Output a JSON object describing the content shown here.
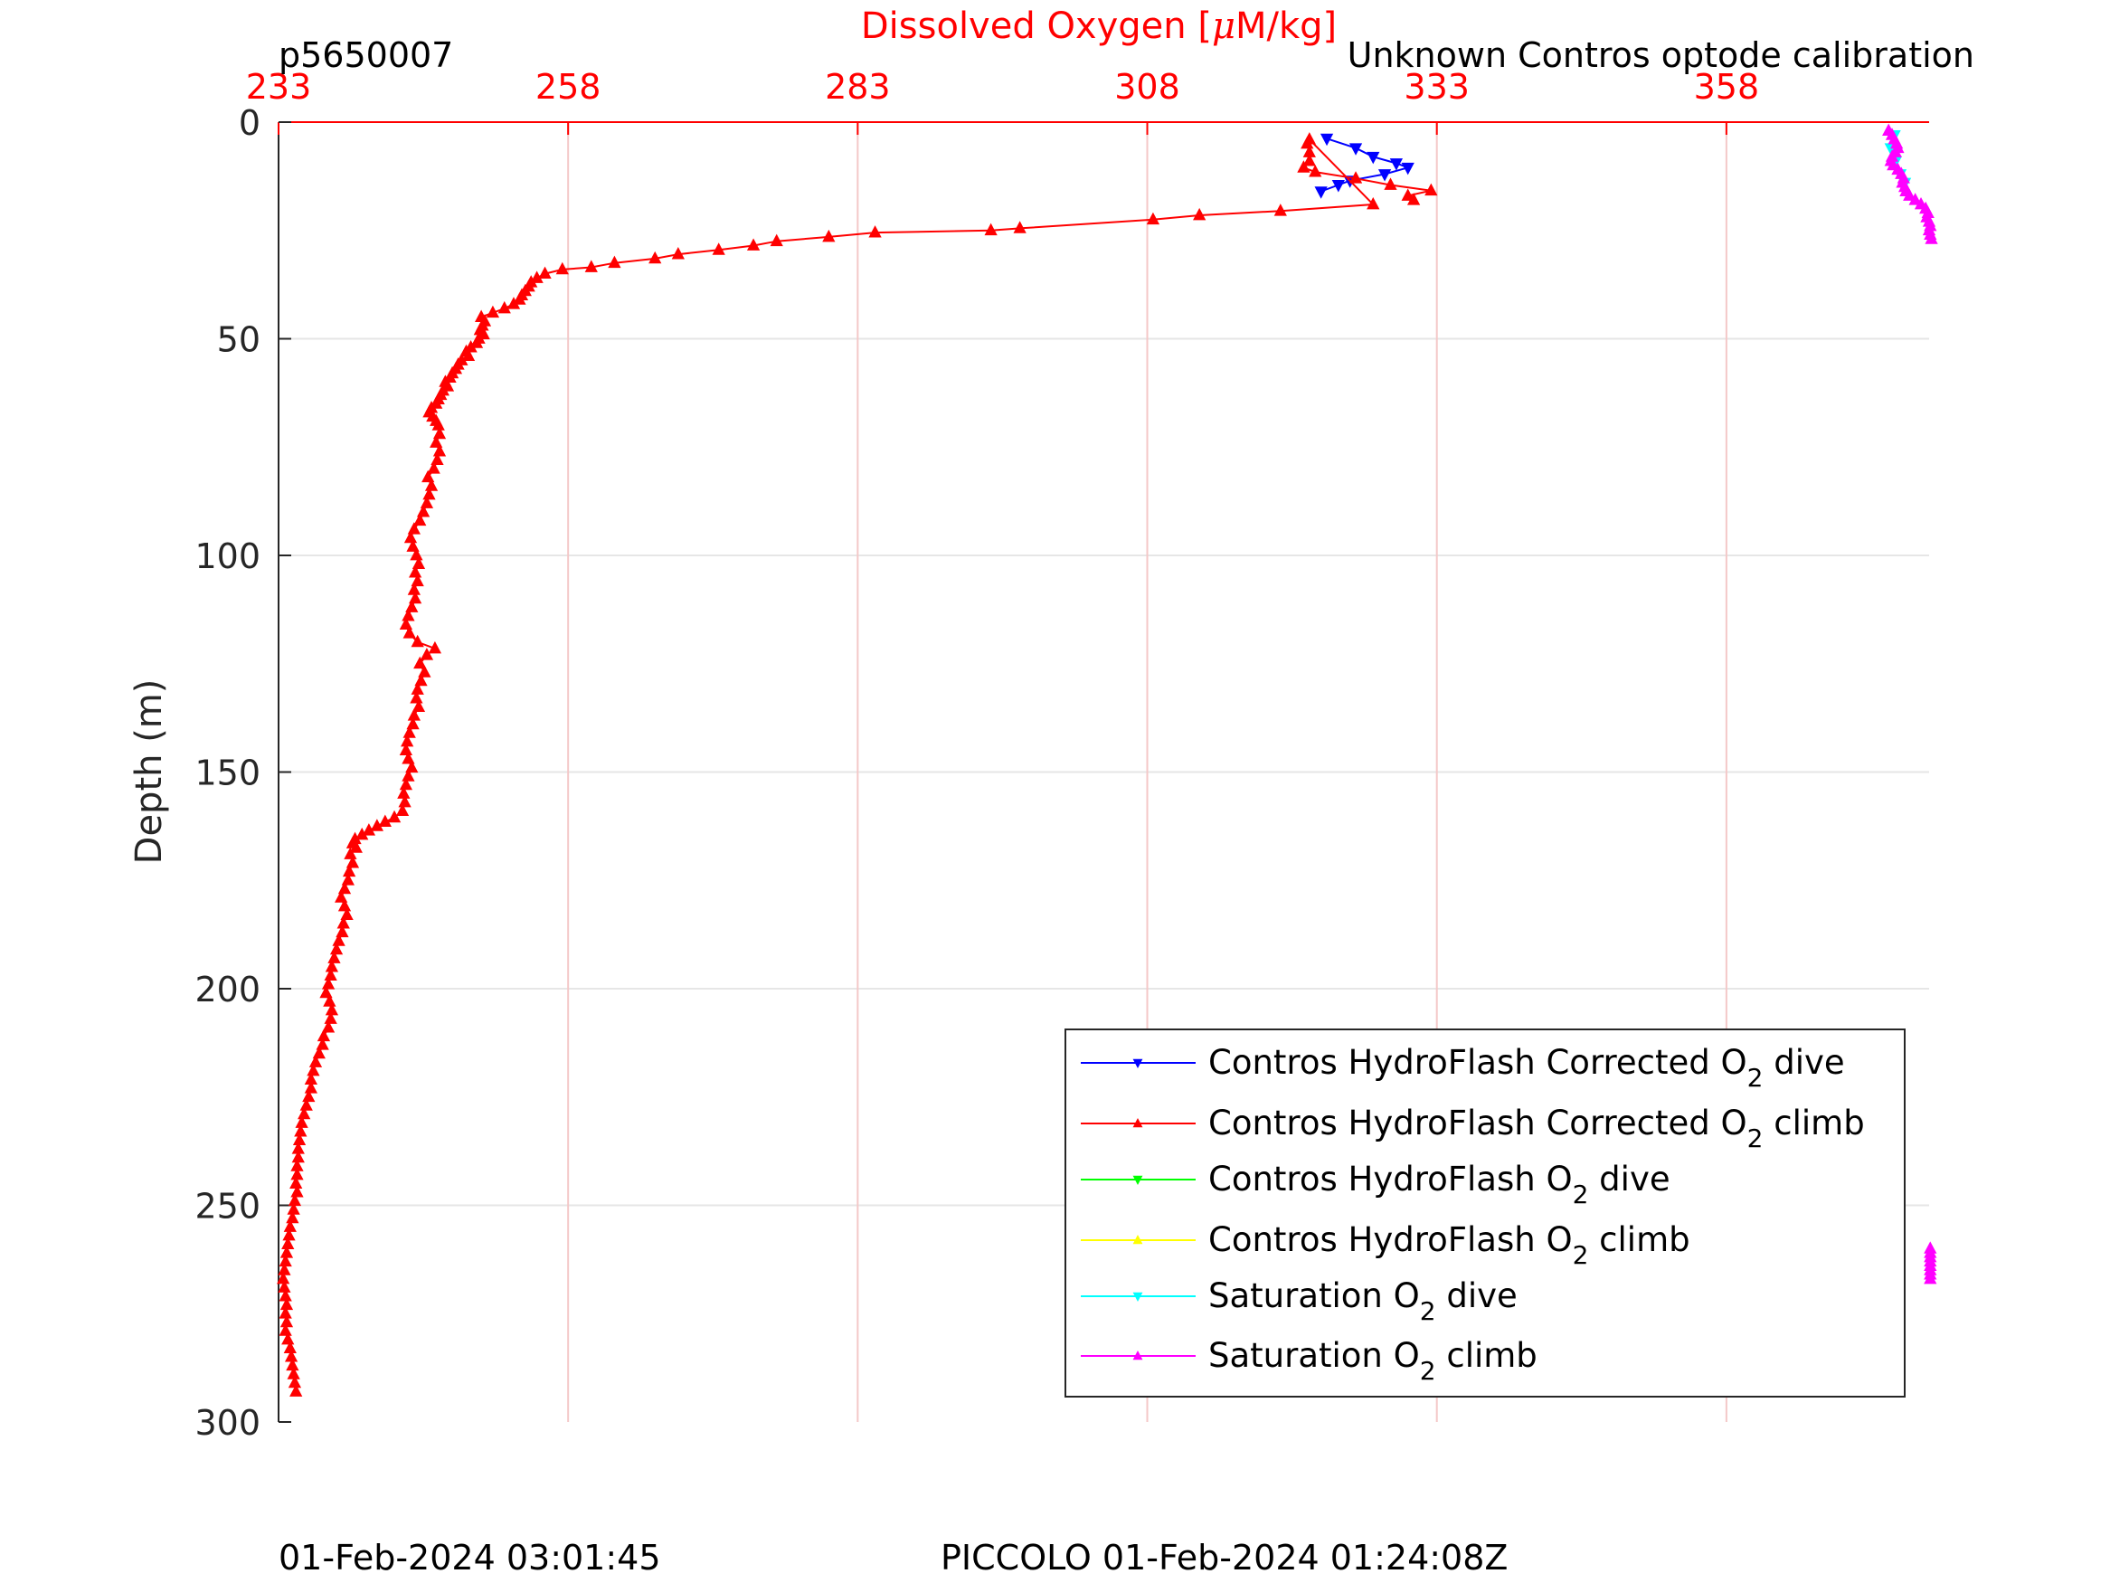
{
  "header": {
    "profile_id": "p5650007",
    "title_prefix": "Dissolved Oxygen [",
    "title_mu": "μ",
    "title_suffix": "M/kg]",
    "calibration_note": "Unknown Contros optode calibration"
  },
  "footer": {
    "left_timestamp": "01-Feb-2024 03:01:45",
    "center_timestamp": "PICCOLO 01-Feb-2024 01:24:08Z"
  },
  "colors": {
    "axis_red": "#ff0000",
    "grid_major": "#e6e6e6",
    "grid_red": "#f4c8c8",
    "axis_black": "#262626"
  },
  "chart_data": {
    "type": "line",
    "xlabel": "Dissolved Oxygen [μM/kg]",
    "ylabel": "Depth (m)",
    "xlim": [
      233,
      375.5
    ],
    "ylim": [
      0,
      300
    ],
    "y_reversed": true,
    "x_axis_position": "top",
    "x_ticks": [
      "233",
      "258",
      "283",
      "308",
      "333",
      "358"
    ],
    "y_ticks": [
      "0",
      "50",
      "100",
      "150",
      "200",
      "250",
      "300"
    ],
    "grid": true,
    "legend_position": "bottom-right",
    "series": [
      {
        "name": "Contros HydroFlash Corrected O₂ dive",
        "label_parts": [
          "Contros HydroFlash Corrected O",
          "2",
          " dive"
        ],
        "color": "#0000ff",
        "marker": "triangle-down",
        "points": [
          [
            323.5,
            3.8
          ],
          [
            326,
            6
          ],
          [
            327.5,
            8
          ],
          [
            329.5,
            9.5
          ],
          [
            330.5,
            10.5
          ],
          [
            328.5,
            12
          ],
          [
            325.5,
            13.5
          ],
          [
            324.5,
            14.5
          ],
          [
            323,
            16
          ]
        ]
      },
      {
        "name": "Contros HydroFlash Corrected O₂ climb",
        "label_parts": [
          "Contros HydroFlash Corrected O",
          "2",
          " climb"
        ],
        "color": "#ff0000",
        "marker": "triangle-up",
        "points": [
          [
            331,
            18
          ],
          [
            330.5,
            17
          ],
          [
            332.5,
            15.8
          ],
          [
            329,
            14.5
          ],
          [
            326,
            13
          ],
          [
            322.5,
            11.5
          ],
          [
            321.5,
            10.5
          ],
          [
            322,
            9
          ],
          [
            322,
            7
          ],
          [
            321.8,
            5
          ],
          [
            322,
            4
          ],
          [
            327.5,
            19
          ],
          [
            319.5,
            20.5
          ],
          [
            312.5,
            21.5
          ],
          [
            308.5,
            22.5
          ],
          [
            297,
            24.5
          ],
          [
            294.5,
            25
          ],
          [
            284.5,
            25.5
          ],
          [
            280.5,
            26.5
          ],
          [
            276,
            27.5
          ],
          [
            274,
            28.5
          ],
          [
            271,
            29.5
          ],
          [
            267.5,
            30.5
          ],
          [
            265.5,
            31.5
          ],
          [
            262,
            32.5
          ],
          [
            260,
            33.5
          ],
          [
            257.5,
            34
          ],
          [
            256,
            35
          ],
          [
            255.3,
            36
          ],
          [
            254.8,
            37
          ],
          [
            254.6,
            38
          ],
          [
            254.3,
            39
          ],
          [
            254,
            40
          ],
          [
            253.8,
            41
          ],
          [
            253.3,
            42
          ],
          [
            252.5,
            43
          ],
          [
            251.5,
            44
          ],
          [
            250.5,
            45
          ],
          [
            250.8,
            46
          ],
          [
            250.6,
            47
          ],
          [
            250.4,
            48
          ],
          [
            250.7,
            49
          ],
          [
            250.3,
            50
          ],
          [
            250.1,
            51
          ],
          [
            249.6,
            52
          ],
          [
            249.2,
            53
          ],
          [
            249.4,
            54
          ],
          [
            248.8,
            55
          ],
          [
            248.5,
            56
          ],
          [
            248.3,
            57
          ],
          [
            248.0,
            58
          ],
          [
            247.8,
            59
          ],
          [
            247.4,
            60
          ],
          [
            247.6,
            61
          ],
          [
            247.2,
            62
          ],
          [
            247.0,
            63
          ],
          [
            246.8,
            64
          ],
          [
            246.6,
            65
          ],
          [
            246.2,
            66
          ],
          [
            246.0,
            67
          ],
          [
            246.3,
            68
          ],
          [
            246.6,
            69
          ],
          [
            246.8,
            70
          ],
          [
            246.9,
            72
          ],
          [
            246.6,
            74
          ],
          [
            246.9,
            76
          ],
          [
            246.7,
            78
          ],
          [
            246.4,
            80
          ],
          [
            245.9,
            82
          ],
          [
            246.2,
            84
          ],
          [
            246.0,
            86
          ],
          [
            245.8,
            88
          ],
          [
            245.5,
            90
          ],
          [
            245.2,
            92
          ],
          [
            244.7,
            94
          ],
          [
            244.4,
            96
          ],
          [
            244.6,
            98
          ],
          [
            244.9,
            100
          ],
          [
            245.1,
            102
          ],
          [
            244.8,
            104
          ],
          [
            245.0,
            106
          ],
          [
            244.7,
            108
          ],
          [
            244.8,
            110
          ],
          [
            244.5,
            112
          ],
          [
            244.2,
            114
          ],
          [
            244.0,
            116
          ],
          [
            244.3,
            118
          ],
          [
            245.0,
            120
          ],
          [
            246.5,
            121.5
          ],
          [
            245.8,
            123
          ],
          [
            245.2,
            125
          ],
          [
            245.6,
            127
          ],
          [
            245.3,
            129
          ],
          [
            245.0,
            131
          ],
          [
            244.9,
            133
          ],
          [
            245.1,
            135
          ],
          [
            244.7,
            137
          ],
          [
            244.6,
            139
          ],
          [
            244.3,
            141
          ],
          [
            244.1,
            143
          ],
          [
            244.0,
            145
          ],
          [
            244.2,
            147
          ],
          [
            244.5,
            149
          ],
          [
            244.2,
            151
          ],
          [
            244.0,
            153
          ],
          [
            243.8,
            155
          ],
          [
            243.9,
            157
          ],
          [
            243.7,
            159
          ],
          [
            243.0,
            160.5
          ],
          [
            242.2,
            161.5
          ],
          [
            241.5,
            162.5
          ],
          [
            240.8,
            163.5
          ],
          [
            240.2,
            164.5
          ],
          [
            239.6,
            165.5
          ],
          [
            239.4,
            166.5
          ],
          [
            239.7,
            167.5
          ],
          [
            239.2,
            169
          ],
          [
            239.4,
            171
          ],
          [
            239.1,
            173
          ],
          [
            239.0,
            175
          ],
          [
            238.7,
            177
          ],
          [
            238.4,
            179
          ],
          [
            238.7,
            181
          ],
          [
            238.9,
            183
          ],
          [
            238.6,
            185
          ],
          [
            238.5,
            187
          ],
          [
            238.2,
            189
          ],
          [
            238.0,
            191
          ],
          [
            237.8,
            193
          ],
          [
            237.6,
            195
          ],
          [
            237.5,
            197
          ],
          [
            237.3,
            199
          ],
          [
            237.1,
            201
          ],
          [
            237.4,
            203
          ],
          [
            237.6,
            205
          ],
          [
            237.5,
            207
          ],
          [
            237.3,
            209
          ],
          [
            236.9,
            211
          ],
          [
            236.8,
            213
          ],
          [
            236.5,
            215
          ],
          [
            236.2,
            217
          ],
          [
            236.0,
            219
          ],
          [
            235.8,
            221
          ],
          [
            235.8,
            223
          ],
          [
            235.6,
            225
          ],
          [
            235.4,
            227
          ],
          [
            235.2,
            229
          ],
          [
            235.0,
            231
          ],
          [
            234.9,
            233
          ],
          [
            234.8,
            235
          ],
          [
            234.7,
            237
          ],
          [
            234.7,
            239
          ],
          [
            234.6,
            241
          ],
          [
            234.6,
            243
          ],
          [
            234.5,
            245
          ],
          [
            234.6,
            247
          ],
          [
            234.4,
            249
          ],
          [
            234.3,
            251
          ],
          [
            234.2,
            253
          ],
          [
            234.0,
            255
          ],
          [
            233.9,
            257
          ],
          [
            233.8,
            259
          ],
          [
            233.7,
            261
          ],
          [
            233.6,
            263
          ],
          [
            233.5,
            265
          ],
          [
            233.4,
            267
          ],
          [
            233.5,
            269
          ],
          [
            233.6,
            271
          ],
          [
            233.7,
            273
          ],
          [
            233.6,
            275
          ],
          [
            233.7,
            277
          ],
          [
            233.6,
            279
          ],
          [
            233.8,
            281
          ],
          [
            234.0,
            283
          ],
          [
            234.1,
            285
          ],
          [
            234.2,
            287
          ],
          [
            234.3,
            289
          ],
          [
            234.4,
            291
          ],
          [
            234.5,
            293
          ]
        ]
      },
      {
        "name": "Contros HydroFlash O₂ dive",
        "label_parts": [
          "Contros HydroFlash O",
          "2",
          " dive"
        ],
        "color": "#00ff00",
        "marker": "triangle-down",
        "points": []
      },
      {
        "name": "Contros HydroFlash O₂ climb",
        "label_parts": [
          "Contros HydroFlash O",
          "2",
          " climb"
        ],
        "color": "#ffff00",
        "marker": "triangle-up",
        "points": []
      },
      {
        "name": "Saturation O₂ dive",
        "label_parts": [
          "Saturation O",
          "2",
          " dive"
        ],
        "color": "#00ffff",
        "marker": "triangle-down",
        "points": [
          [
            372.5,
            3
          ],
          [
            372.2,
            6
          ],
          [
            372.6,
            9
          ],
          [
            373.0,
            12
          ],
          [
            373.4,
            14
          ]
        ]
      },
      {
        "name": "Saturation O₂ climb",
        "label_parts": [
          "Saturation O",
          "2",
          " climb"
        ],
        "color": "#ff00ff",
        "marker": "triangle-up",
        "points": [
          [
            372.0,
            2
          ],
          [
            372.3,
            3
          ],
          [
            372.5,
            4
          ],
          [
            372.7,
            5
          ],
          [
            372.8,
            6
          ],
          [
            372.6,
            7
          ],
          [
            372.3,
            8
          ],
          [
            372.2,
            9
          ],
          [
            372.4,
            10
          ],
          [
            372.8,
            11
          ],
          [
            373.1,
            12
          ],
          [
            373.3,
            13
          ],
          [
            373.2,
            14
          ],
          [
            373.4,
            15
          ],
          [
            373.5,
            16
          ],
          [
            373.8,
            17
          ],
          [
            374.3,
            18
          ],
          [
            374.8,
            19
          ],
          [
            375.2,
            20
          ],
          [
            375.4,
            21
          ],
          [
            375.3,
            22
          ],
          [
            375.5,
            23
          ],
          [
            375.6,
            24
          ],
          [
            375.5,
            25
          ],
          [
            375.6,
            26
          ],
          [
            375.7,
            27
          ],
          [
            375.6,
            260
          ],
          [
            375.6,
            261
          ],
          [
            375.6,
            262
          ],
          [
            375.6,
            263
          ],
          [
            375.6,
            264
          ],
          [
            375.6,
            265
          ],
          [
            375.6,
            266
          ],
          [
            375.6,
            267
          ]
        ]
      }
    ]
  }
}
